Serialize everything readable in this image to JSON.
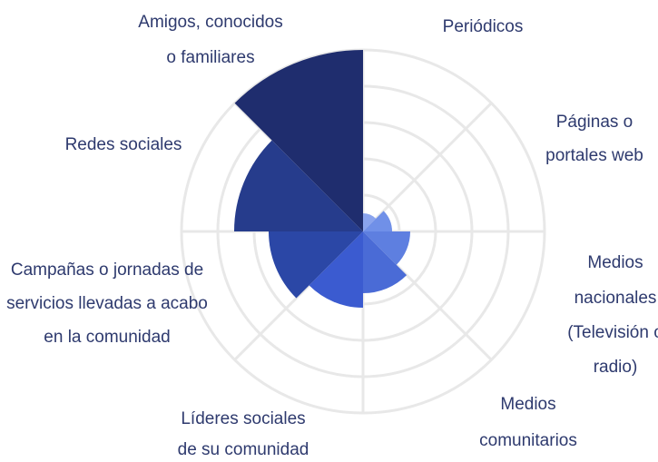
{
  "chart_data": {
    "type": "polar_area",
    "categories": [
      [
        "Periódicos"
      ],
      [
        "Páginas o",
        "portales web"
      ],
      [
        "Medios",
        "nacionales",
        "(Televisión o",
        "radio)"
      ],
      [
        "Medios",
        "comunitarios"
      ],
      [
        "Líderes sociales",
        "de su comunidad"
      ],
      [
        "Campañas o jornadas de",
        "servicios llevadas a acabo",
        "en la comunidad"
      ],
      [
        "Redes sociales"
      ],
      [
        "Amigos, conocidos",
        "o familiares"
      ]
    ],
    "values": [
      0.5,
      0.8,
      1.3,
      1.7,
      2.1,
      2.6,
      3.55,
      5
    ],
    "colors": [
      "#8aa4ee",
      "#7090e8",
      "#5e7fe0",
      "#4a6bd6",
      "#3b5bd0",
      "#2b47a6",
      "#263c8c",
      "#1f2d6e"
    ],
    "rlim": [
      0,
      5
    ],
    "rticks": [
      1,
      2,
      3,
      4,
      5
    ],
    "grid": true
  }
}
